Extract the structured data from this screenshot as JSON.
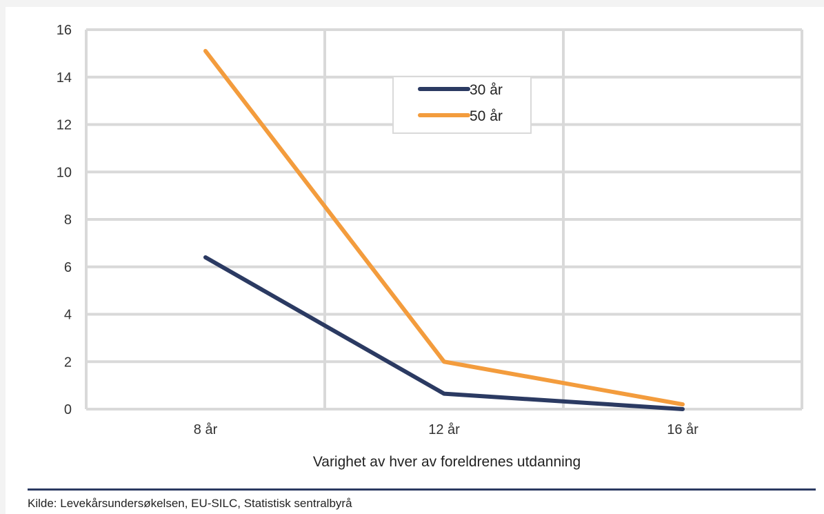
{
  "chart_data": {
    "type": "line",
    "title": "",
    "xlabel": "Varighet av hver av foreldrenes utdanning",
    "ylabel": "",
    "categories": [
      "8 år",
      "12 år",
      "16 år"
    ],
    "ylim": [
      0,
      16
    ],
    "yticks": [
      0,
      2,
      4,
      6,
      8,
      10,
      12,
      14,
      16
    ],
    "grid": true,
    "legend_position": "top-center",
    "series": [
      {
        "name": "30 år",
        "color": "#2b3a62",
        "values": [
          6.4,
          0.65,
          0.0
        ]
      },
      {
        "name": "50 år",
        "color": "#f39c3d",
        "values": [
          15.1,
          2.0,
          0.2
        ]
      }
    ]
  },
  "source": "Kilde: Levekårsundersøkelsen, EU-SILC, Statistisk sentralbyrå",
  "colors": {
    "grid": "#d9d9d9",
    "rule": "#2b3a62"
  }
}
